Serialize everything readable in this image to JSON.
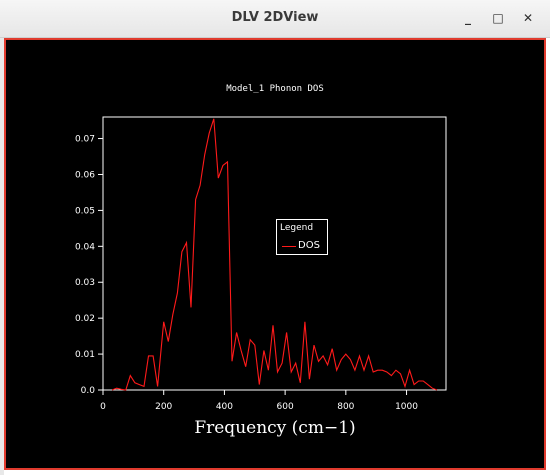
{
  "window": {
    "title": "DLV 2DView",
    "minimize_label": "_",
    "maximize_label": "□",
    "close_label": "✕"
  },
  "legend": {
    "title": "Legend",
    "entry": "DOS"
  },
  "colors": {
    "canvas_bg": "#000000",
    "series": "#ff1a1a",
    "axes": "#ffffff",
    "border": "#e03b2e"
  },
  "chart_data": {
    "type": "line",
    "title": "Model_1 Phonon DOS",
    "xlabel": "Frequency (cm−1)",
    "ylabel": "",
    "xlim": [
      0,
      1130
    ],
    "ylim": [
      0,
      0.076
    ],
    "xticks": [
      0,
      200,
      400,
      600,
      800,
      1000
    ],
    "yticks": [
      0.0,
      0.01,
      0.02,
      0.03,
      0.04,
      0.05,
      0.06,
      0.07
    ],
    "ytick_labels": [
      "0.0",
      "0.01",
      "0.02",
      "0.03",
      "0.04",
      "0.05",
      "0.06",
      "0.07"
    ],
    "grid": false,
    "legend_position": "center-right",
    "series": [
      {
        "name": "DOS",
        "x": [
          30,
          45,
          60,
          75,
          90,
          105,
          120,
          135,
          150,
          165,
          180,
          200,
          215,
          230,
          245,
          260,
          275,
          290,
          305,
          320,
          335,
          350,
          365,
          380,
          395,
          410,
          425,
          440,
          455,
          470,
          485,
          500,
          515,
          530,
          545,
          560,
          575,
          590,
          605,
          620,
          635,
          650,
          665,
          680,
          695,
          710,
          725,
          740,
          755,
          770,
          785,
          800,
          815,
          830,
          845,
          860,
          875,
          890,
          905,
          920,
          935,
          950,
          965,
          980,
          995,
          1010,
          1025,
          1040,
          1055,
          1070,
          1085,
          1100
        ],
        "y": [
          0.0,
          0.0005,
          0.0002,
          0.0,
          0.004,
          0.002,
          0.0015,
          0.001,
          0.0095,
          0.0095,
          0.001,
          0.019,
          0.0135,
          0.021,
          0.027,
          0.0385,
          0.041,
          0.023,
          0.053,
          0.057,
          0.0655,
          0.0715,
          0.0755,
          0.059,
          0.0625,
          0.0635,
          0.008,
          0.016,
          0.011,
          0.0065,
          0.014,
          0.0125,
          0.0015,
          0.011,
          0.0055,
          0.018,
          0.005,
          0.0075,
          0.016,
          0.005,
          0.0075,
          0.002,
          0.019,
          0.003,
          0.0125,
          0.008,
          0.0095,
          0.007,
          0.0115,
          0.0055,
          0.0085,
          0.01,
          0.0085,
          0.0055,
          0.0095,
          0.0055,
          0.0095,
          0.005,
          0.0055,
          0.0055,
          0.005,
          0.004,
          0.0055,
          0.0045,
          0.001,
          0.0055,
          0.0015,
          0.0025,
          0.0025,
          0.0015,
          0.0005,
          0.0
        ]
      }
    ]
  }
}
